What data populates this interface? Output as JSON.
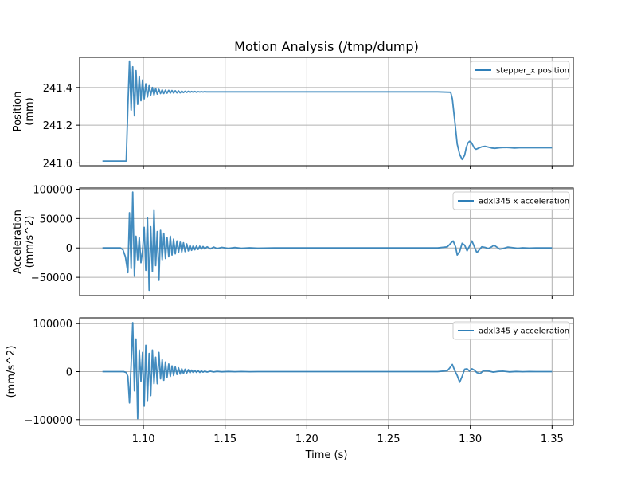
{
  "chart_data": {
    "type": "line",
    "title": "Motion Analysis (/tmp/dump)",
    "xlabel": "Time (s)",
    "xlim": [
      1.061,
      1.363
    ],
    "xticks": [
      1.1,
      1.15,
      1.2,
      1.25,
      1.3,
      1.35
    ],
    "xtick_labels": [
      "1.10",
      "1.15",
      "1.20",
      "1.25",
      "1.30",
      "1.35"
    ],
    "grid": true,
    "line_color": "#2f7fb8",
    "panels": [
      {
        "id": "position",
        "ylabel_lines": [
          "Position",
          "(mm)"
        ],
        "ylim": [
          240.985,
          241.56
        ],
        "yticks": [
          241.0,
          241.2,
          241.4
        ],
        "ytick_labels": [
          "241.0",
          "241.2",
          "241.4"
        ],
        "legend": "stepper_x position",
        "legend_position": "upper right",
        "series": {
          "name": "stepper_x position",
          "x": [
            1.075,
            1.0895,
            1.0905,
            1.0915,
            1.0925,
            1.0935,
            1.0945,
            1.0955,
            1.0965,
            1.0975,
            1.0985,
            1.0995,
            1.1005,
            1.1015,
            1.1025,
            1.1035,
            1.1045,
            1.1055,
            1.1065,
            1.1075,
            1.1085,
            1.1095,
            1.1105,
            1.1115,
            1.1125,
            1.1135,
            1.1145,
            1.1155,
            1.1165,
            1.1175,
            1.1185,
            1.1195,
            1.1205,
            1.1215,
            1.1225,
            1.1235,
            1.1245,
            1.1255,
            1.1265,
            1.1275,
            1.1285,
            1.1295,
            1.1305,
            1.1315,
            1.1325,
            1.1335,
            1.1345,
            1.1355,
            1.1365,
            1.1375,
            1.1385,
            1.14,
            1.16,
            1.18,
            1.2,
            1.22,
            1.24,
            1.26,
            1.28,
            1.288,
            1.289,
            1.2905,
            1.292,
            1.2935,
            1.295,
            1.2965,
            1.2975,
            1.2985,
            1.2995,
            1.3005,
            1.3015,
            1.3025,
            1.3035,
            1.305,
            1.307,
            1.309,
            1.311,
            1.313,
            1.315,
            1.318,
            1.321,
            1.324,
            1.327,
            1.33,
            1.333,
            1.336,
            1.34,
            1.345,
            1.35
          ],
          "y": [
            241.01,
            241.01,
            241.3,
            241.54,
            241.28,
            241.51,
            241.25,
            241.49,
            241.31,
            241.46,
            241.33,
            241.44,
            241.34,
            241.42,
            241.35,
            241.41,
            241.36,
            241.4,
            241.36,
            241.395,
            241.365,
            241.39,
            241.368,
            241.388,
            241.368,
            241.386,
            241.37,
            241.385,
            241.37,
            241.384,
            241.371,
            241.383,
            241.372,
            241.382,
            241.372,
            241.381,
            241.373,
            241.38,
            241.374,
            241.38,
            241.374,
            241.379,
            241.375,
            241.379,
            241.375,
            241.378,
            241.376,
            241.378,
            241.376,
            241.378,
            241.377,
            241.377,
            241.377,
            241.377,
            241.377,
            241.377,
            241.377,
            241.377,
            241.377,
            241.375,
            241.34,
            241.22,
            241.1,
            241.045,
            241.018,
            241.04,
            241.08,
            241.105,
            241.115,
            241.11,
            241.095,
            241.078,
            241.072,
            241.078,
            241.085,
            241.088,
            241.084,
            241.079,
            241.077,
            241.08,
            241.082,
            241.081,
            241.079,
            241.08,
            241.081,
            241.08,
            241.08,
            241.08,
            241.08
          ]
        }
      },
      {
        "id": "x_accel",
        "ylabel_lines": [
          "Acceleration",
          "(mm/s^2)"
        ],
        "ylim": [
          -81000,
          102000
        ],
        "yticks": [
          100000,
          50000,
          0,
          -50000
        ],
        "ytick_labels": [
          "100000",
          "50000",
          "0",
          "−50000"
        ],
        "legend": "adxl345 x acceleration",
        "legend_position": "upper right",
        "series": {
          "name": "adxl345 x acceleration",
          "x": [
            1.075,
            1.086,
            1.0875,
            1.089,
            1.0905,
            1.0915,
            1.0925,
            1.0935,
            1.0945,
            1.0955,
            1.0965,
            1.0975,
            1.0985,
            1.0995,
            1.1005,
            1.1015,
            1.1025,
            1.1035,
            1.1045,
            1.1055,
            1.1065,
            1.1075,
            1.1085,
            1.1095,
            1.1105,
            1.1115,
            1.1125,
            1.1135,
            1.1145,
            1.1155,
            1.1165,
            1.1175,
            1.1185,
            1.1195,
            1.1205,
            1.1215,
            1.1225,
            1.1235,
            1.1245,
            1.1255,
            1.1265,
            1.1275,
            1.1285,
            1.1295,
            1.1305,
            1.1315,
            1.1325,
            1.1335,
            1.1345,
            1.1355,
            1.1365,
            1.1375,
            1.139,
            1.141,
            1.143,
            1.145,
            1.148,
            1.152,
            1.156,
            1.16,
            1.165,
            1.17,
            1.18,
            1.2,
            1.22,
            1.24,
            1.26,
            1.28,
            1.286,
            1.288,
            1.2895,
            1.291,
            1.292,
            1.2935,
            1.295,
            1.2965,
            1.298,
            1.2995,
            1.301,
            1.3025,
            1.304,
            1.3055,
            1.307,
            1.309,
            1.311,
            1.313,
            1.3145,
            1.316,
            1.318,
            1.32,
            1.323,
            1.326,
            1.329,
            1.332,
            1.336,
            1.34,
            1.345,
            1.35
          ],
          "y": [
            0,
            0,
            -3000,
            -15000,
            -42000,
            60000,
            -35000,
            95000,
            -48000,
            20000,
            -20000,
            18000,
            -25000,
            -5000,
            35000,
            -38000,
            52000,
            -72000,
            36000,
            -40000,
            65000,
            -30000,
            28000,
            -55000,
            30000,
            -20000,
            25000,
            -18000,
            18000,
            -15000,
            20000,
            -12000,
            15000,
            -10000,
            12000,
            -8000,
            10000,
            -7000,
            9000,
            -6000,
            7000,
            -5000,
            5000,
            -4000,
            4000,
            -3000,
            3500,
            -2500,
            3000,
            -2000,
            2500,
            -1500,
            2000,
            -1500,
            1500,
            -1000,
            1000,
            -800,
            700,
            -500,
            400,
            -300,
            0,
            0,
            0,
            0,
            0,
            0,
            2000,
            8000,
            12000,
            2000,
            -12000,
            -6000,
            8000,
            5000,
            -5000,
            3000,
            12000,
            2000,
            -8000,
            -3000,
            2000,
            1000,
            -1000,
            2000,
            5000,
            2000,
            -2000,
            -1000,
            1500,
            500,
            -500,
            300,
            -200,
            100,
            0,
            0
          ]
        }
      },
      {
        "id": "y_accel",
        "ylabel_lines": [
          "(mm/s^2)"
        ],
        "ylim": [
          -112000,
          112000
        ],
        "yticks": [
          100000,
          0,
          -100000
        ],
        "ytick_labels": [
          "100000",
          "0",
          "−100000"
        ],
        "legend": "adxl345 y acceleration",
        "legend_position": "upper right",
        "series": {
          "name": "adxl345 y acceleration",
          "x": [
            1.075,
            1.088,
            1.0895,
            1.0905,
            1.0915,
            1.0925,
            1.0935,
            1.0945,
            1.0955,
            1.0965,
            1.0975,
            1.0985,
            1.0995,
            1.1005,
            1.1015,
            1.1025,
            1.1035,
            1.1045,
            1.1055,
            1.1065,
            1.1075,
            1.1085,
            1.1095,
            1.1105,
            1.1115,
            1.1125,
            1.1135,
            1.1145,
            1.1155,
            1.1165,
            1.1175,
            1.1185,
            1.1195,
            1.1205,
            1.1215,
            1.1225,
            1.1235,
            1.1245,
            1.1255,
            1.1265,
            1.1275,
            1.1285,
            1.1295,
            1.1305,
            1.1315,
            1.1325,
            1.1335,
            1.1345,
            1.1355,
            1.1365,
            1.1375,
            1.139,
            1.141,
            1.143,
            1.145,
            1.148,
            1.152,
            1.156,
            1.16,
            1.165,
            1.17,
            1.18,
            1.2,
            1.22,
            1.24,
            1.26,
            1.28,
            1.286,
            1.2875,
            1.289,
            1.2905,
            1.292,
            1.2935,
            1.295,
            1.2965,
            1.298,
            1.2995,
            1.301,
            1.3025,
            1.304,
            1.306,
            1.308,
            1.311,
            1.314,
            1.317,
            1.32,
            1.324,
            1.328,
            1.332,
            1.336,
            1.34,
            1.345,
            1.35
          ],
          "y": [
            0,
            0,
            -2000,
            -10000,
            -65000,
            15000,
            102000,
            -40000,
            68000,
            -98000,
            45000,
            -20000,
            40000,
            -72000,
            55000,
            -60000,
            38000,
            -50000,
            45000,
            -25000,
            30000,
            -25000,
            40000,
            -15000,
            25000,
            -18000,
            20000,
            -12000,
            16000,
            -10000,
            12000,
            -8000,
            10000,
            -6000,
            8000,
            -5000,
            6000,
            -4000,
            5000,
            -3000,
            4000,
            -2500,
            3000,
            -2000,
            2500,
            -1500,
            2000,
            -1500,
            1500,
            -1000,
            1000,
            -800,
            800,
            -600,
            500,
            -400,
            300,
            -200,
            200,
            -100,
            0,
            0,
            0,
            0,
            0,
            0,
            0,
            2000,
            8000,
            15000,
            2000,
            -8000,
            -22000,
            -10000,
            5000,
            6000,
            1000,
            6000,
            3000,
            -2000,
            -4000,
            2000,
            1500,
            -1000,
            500,
            1000,
            -500,
            300,
            -200,
            100,
            0,
            0,
            0
          ]
        }
      }
    ]
  }
}
